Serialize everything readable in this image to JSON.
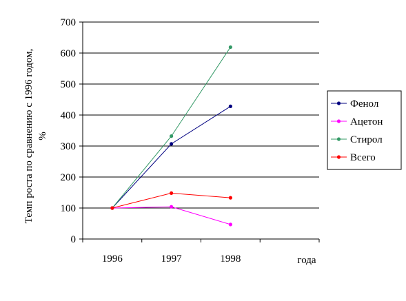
{
  "chart_data": {
    "type": "line",
    "title": "",
    "xlabel": "года",
    "ylabel": "Темп роста по сравнению с 1996 годом, %",
    "ylim": [
      0,
      700
    ],
    "yticks": [
      0,
      100,
      200,
      300,
      400,
      500,
      600,
      700
    ],
    "x": [
      "1996",
      "1997",
      "1998"
    ],
    "grid": "horizontal",
    "legend_position": "right",
    "series": [
      {
        "name": "Фенол",
        "color": "#000080",
        "values": [
          100,
          307,
          428
        ]
      },
      {
        "name": "Ацетон",
        "color": "#ff00ff",
        "values": [
          100,
          104,
          47
        ]
      },
      {
        "name": "Стирол",
        "color": "#339966",
        "values": [
          100,
          332,
          619
        ]
      },
      {
        "name": "Всего",
        "color": "#ff0000",
        "values": [
          100,
          148,
          133
        ]
      }
    ]
  }
}
